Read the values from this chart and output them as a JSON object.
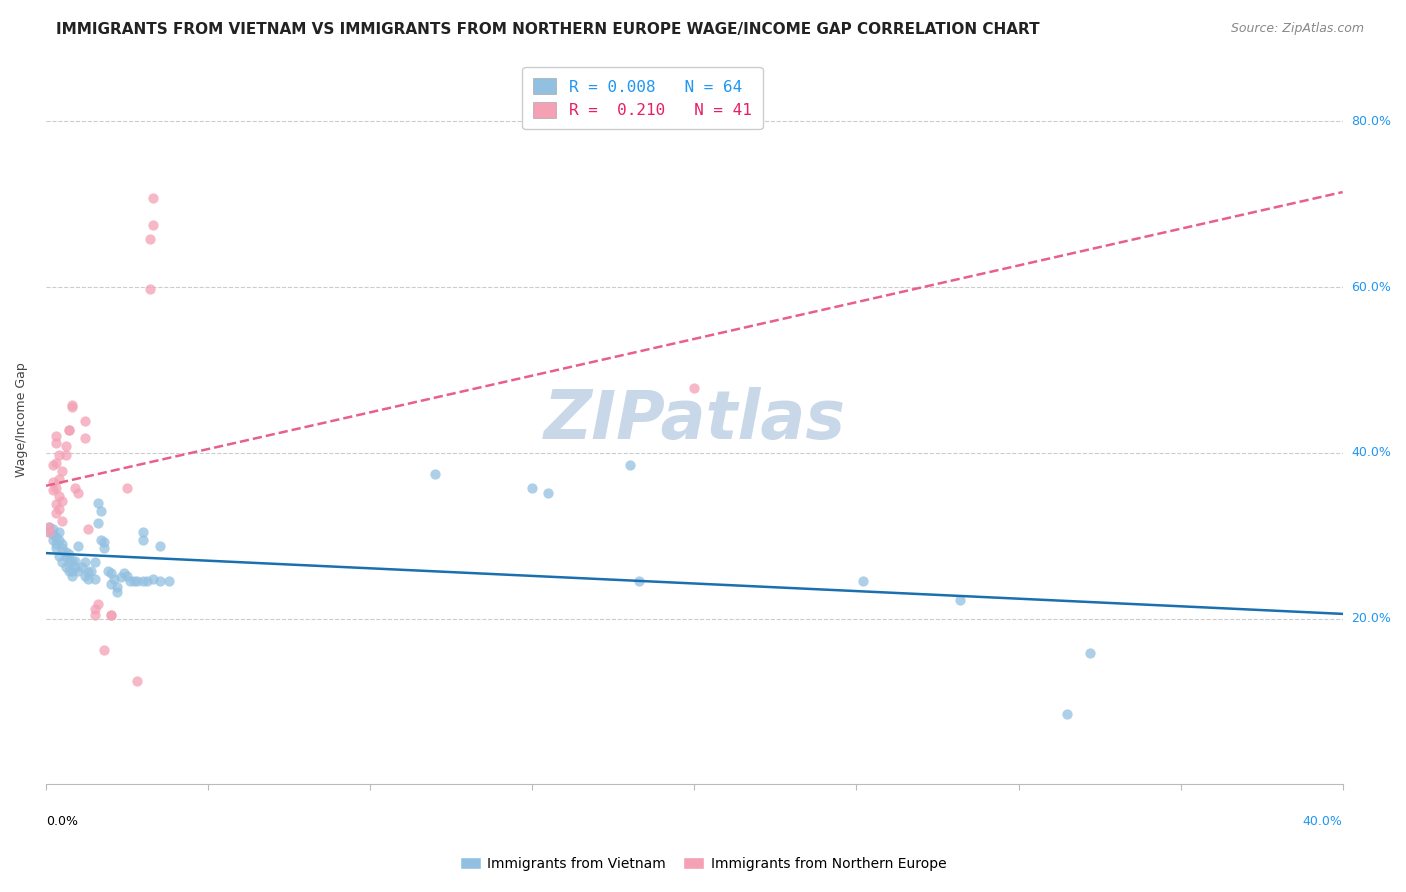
{
  "title": "IMMIGRANTS FROM VIETNAM VS IMMIGRANTS FROM NORTHERN EUROPE WAGE/INCOME GAP CORRELATION CHART",
  "source": "Source: ZipAtlas.com",
  "ylabel": "Wage/Income Gap",
  "ytick_labels": [
    "20.0%",
    "40.0%",
    "60.0%",
    "80.0%"
  ],
  "ytick_values": [
    0.2,
    0.4,
    0.6,
    0.8
  ],
  "xlim": [
    0.0,
    0.4
  ],
  "ylim": [
    0.0,
    0.88
  ],
  "vietnam_color": "#92c0e0",
  "northern_europe_color": "#f4a0b5",
  "regression_vietnam_color": "#1a6faf",
  "regression_northern_europe_color": "#e8608a",
  "watermark": "ZIPatlas",
  "vietnam_scatter": [
    [
      0.001,
      0.31
    ],
    [
      0.001,
      0.305
    ],
    [
      0.002,
      0.308
    ],
    [
      0.002,
      0.295
    ],
    [
      0.002,
      0.302
    ],
    [
      0.003,
      0.298
    ],
    [
      0.003,
      0.29
    ],
    [
      0.003,
      0.285
    ],
    [
      0.004,
      0.295
    ],
    [
      0.004,
      0.305
    ],
    [
      0.004,
      0.275
    ],
    [
      0.005,
      0.285
    ],
    [
      0.005,
      0.29
    ],
    [
      0.005,
      0.268
    ],
    [
      0.006,
      0.28
    ],
    [
      0.006,
      0.275
    ],
    [
      0.006,
      0.262
    ],
    [
      0.007,
      0.278
    ],
    [
      0.007,
      0.268
    ],
    [
      0.007,
      0.258
    ],
    [
      0.008,
      0.27
    ],
    [
      0.008,
      0.258
    ],
    [
      0.008,
      0.252
    ],
    [
      0.009,
      0.262
    ],
    [
      0.009,
      0.27
    ],
    [
      0.01,
      0.288
    ],
    [
      0.01,
      0.258
    ],
    [
      0.011,
      0.262
    ],
    [
      0.012,
      0.268
    ],
    [
      0.012,
      0.252
    ],
    [
      0.013,
      0.256
    ],
    [
      0.013,
      0.248
    ],
    [
      0.014,
      0.258
    ],
    [
      0.015,
      0.268
    ],
    [
      0.015,
      0.248
    ],
    [
      0.016,
      0.34
    ],
    [
      0.016,
      0.315
    ],
    [
      0.017,
      0.33
    ],
    [
      0.017,
      0.295
    ],
    [
      0.018,
      0.292
    ],
    [
      0.018,
      0.285
    ],
    [
      0.019,
      0.258
    ],
    [
      0.02,
      0.255
    ],
    [
      0.02,
      0.242
    ],
    [
      0.021,
      0.248
    ],
    [
      0.022,
      0.238
    ],
    [
      0.022,
      0.232
    ],
    [
      0.023,
      0.25
    ],
    [
      0.024,
      0.255
    ],
    [
      0.025,
      0.252
    ],
    [
      0.026,
      0.245
    ],
    [
      0.027,
      0.245
    ],
    [
      0.028,
      0.245
    ],
    [
      0.03,
      0.305
    ],
    [
      0.03,
      0.295
    ],
    [
      0.03,
      0.245
    ],
    [
      0.031,
      0.245
    ],
    [
      0.033,
      0.248
    ],
    [
      0.035,
      0.245
    ],
    [
      0.035,
      0.288
    ],
    [
      0.038,
      0.245
    ],
    [
      0.12,
      0.375
    ],
    [
      0.15,
      0.358
    ],
    [
      0.155,
      0.352
    ],
    [
      0.18,
      0.385
    ],
    [
      0.183,
      0.245
    ],
    [
      0.252,
      0.245
    ],
    [
      0.282,
      0.222
    ],
    [
      0.315,
      0.085
    ],
    [
      0.322,
      0.158
    ]
  ],
  "northern_europe_scatter": [
    [
      0.001,
      0.31
    ],
    [
      0.001,
      0.305
    ],
    [
      0.002,
      0.385
    ],
    [
      0.002,
      0.365
    ],
    [
      0.002,
      0.355
    ],
    [
      0.003,
      0.42
    ],
    [
      0.003,
      0.412
    ],
    [
      0.003,
      0.388
    ],
    [
      0.003,
      0.358
    ],
    [
      0.003,
      0.338
    ],
    [
      0.003,
      0.328
    ],
    [
      0.004,
      0.398
    ],
    [
      0.004,
      0.368
    ],
    [
      0.004,
      0.348
    ],
    [
      0.004,
      0.332
    ],
    [
      0.005,
      0.378
    ],
    [
      0.005,
      0.342
    ],
    [
      0.005,
      0.318
    ],
    [
      0.006,
      0.408
    ],
    [
      0.006,
      0.398
    ],
    [
      0.007,
      0.428
    ],
    [
      0.007,
      0.428
    ],
    [
      0.008,
      0.458
    ],
    [
      0.008,
      0.455
    ],
    [
      0.009,
      0.358
    ],
    [
      0.01,
      0.352
    ],
    [
      0.012,
      0.438
    ],
    [
      0.012,
      0.418
    ],
    [
      0.013,
      0.308
    ],
    [
      0.015,
      0.212
    ],
    [
      0.015,
      0.205
    ],
    [
      0.016,
      0.218
    ],
    [
      0.018,
      0.162
    ],
    [
      0.02,
      0.205
    ],
    [
      0.02,
      0.205
    ],
    [
      0.025,
      0.358
    ],
    [
      0.028,
      0.125
    ],
    [
      0.032,
      0.658
    ],
    [
      0.032,
      0.598
    ],
    [
      0.033,
      0.708
    ],
    [
      0.033,
      0.675
    ],
    [
      0.2,
      0.478
    ]
  ],
  "title_fontsize": 11,
  "axis_label_fontsize": 9,
  "tick_fontsize": 9,
  "source_fontsize": 9,
  "watermark_fontsize": 48,
  "watermark_color": "#c8d8e8",
  "background_color": "#ffffff",
  "grid_color": "#cccccc",
  "scatter_alpha": 0.75,
  "scatter_size": 55
}
